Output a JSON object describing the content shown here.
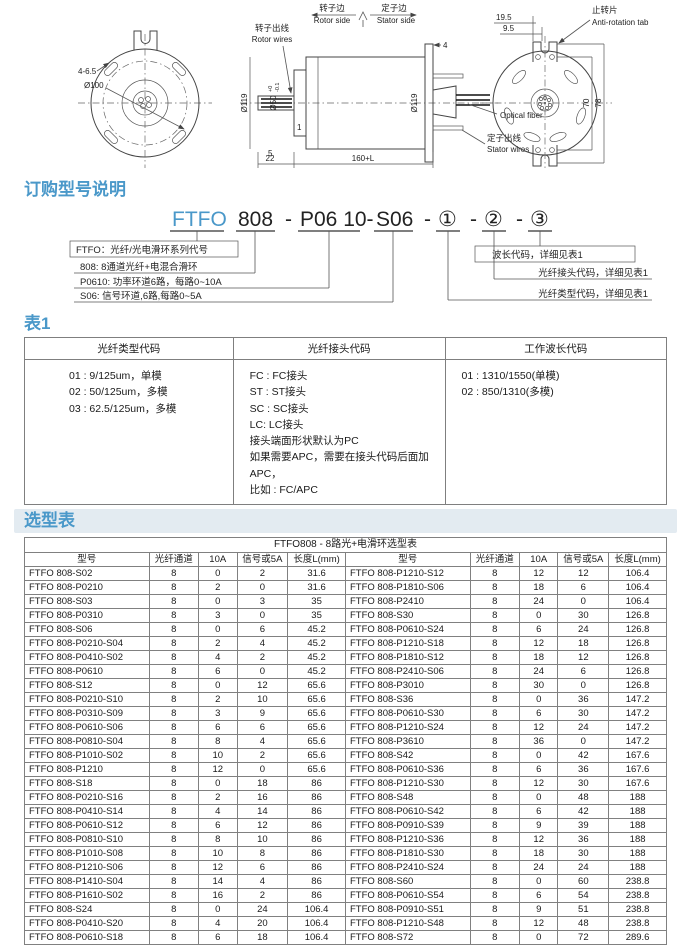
{
  "drawing": {
    "front": {
      "dim_holes": "4-6.5",
      "dim_bolt_circle": "Ø100"
    },
    "side": {
      "rotor_side_cn": "转子边",
      "rotor_side_en": "Rotor side",
      "stator_side_cn": "定子边",
      "stator_side_en": "Stator side",
      "rotor_wires_cn": "转子出线",
      "rotor_wires_en": "Rotor wires",
      "stator_wires_cn": "定子出线",
      "stator_wires_en": "Stator wires",
      "optical_fiber": "Optical fiber",
      "dim_od_left": "Ø119",
      "dim_shaft": "Ø50",
      "dim_shaft_tol_upper": "+0",
      "dim_shaft_tol_lower": "-0.1",
      "dim_od_right": "Ø119",
      "dim_1": "1",
      "dim_4": "4",
      "dim_5": "5",
      "dim_22": "22",
      "dim_length": "160+L"
    },
    "rear": {
      "anti_rotation_cn": "止转片",
      "anti_rotation_en": "Anti-rotation tab",
      "dim_19_5": "19.5",
      "dim_9_5": "9.5",
      "dim_70": "70",
      "dim_78": "78"
    }
  },
  "ordering": {
    "section_title": "订购型号说明",
    "model": {
      "series": "FTFO",
      "code_channels": "808",
      "dash1": "-",
      "code_power": "P06 10-",
      "code_signal": "S06",
      "dash2": "-",
      "c1": "①",
      "dash3": "-",
      "c2": "②",
      "dash4": "-",
      "c3": "③"
    },
    "callouts_left": [
      "FTFO：光纤/光电滑环系列代号",
      "808: 8通道光纤+电混合滑环",
      "P0610: 功率环道6路，每路0~10A",
      "S06: 信号环道,6路,每路0~5A"
    ],
    "callouts_right": [
      "波长代码，详细见表1",
      "光纤接头代码，详细见表1",
      "光纤类型代码，详细见表1"
    ]
  },
  "table1": {
    "section_title": "表1",
    "headers": [
      "光纤类型代码",
      "光纤接头代码",
      "工作波长代码"
    ],
    "fiber_type_codes": "01 : 9/125um，单模\n02 : 50/125um，多模\n03 : 62.5/125um，多模",
    "connector_codes": "FC : FC接头\nST : ST接头\nSC : SC接头\nLC:  LC接头\n接头端面形状默认为PC\n如果需要APC，需要在接头代码后面加APC，\n比如 : FC/APC",
    "wavelength_codes": "01 : 1310/1550(单模)\n02 : 850/1310(多模)"
  },
  "selection_table": {
    "section_title": "选型表",
    "title": "FTFO808 - 8路光+电滑环选型表",
    "headers": [
      "型号",
      "光纤通道",
      "10A",
      "信号或5A",
      "长度L(mm)",
      "型号",
      "光纤通道",
      "10A",
      "信号或5A",
      "长度L(mm)"
    ],
    "rows": [
      [
        "FTFO 808-S02",
        "8",
        "0",
        "2",
        "31.6",
        "FTFO 808-P1210-S12",
        "8",
        "12",
        "12",
        "106.4"
      ],
      [
        "FTFO 808-P0210",
        "8",
        "2",
        "0",
        "31.6",
        "FTFO 808-P1810-S06",
        "8",
        "18",
        "6",
        "106.4"
      ],
      [
        "FTFO 808-S03",
        "8",
        "0",
        "3",
        "35",
        "FTFO 808-P2410",
        "8",
        "24",
        "0",
        "106.4"
      ],
      [
        "FTFO 808-P0310",
        "8",
        "3",
        "0",
        "35",
        "FTFO 808-S30",
        "8",
        "0",
        "30",
        "126.8"
      ],
      [
        "FTFO 808-S06",
        "8",
        "0",
        "6",
        "45.2",
        "FTFO 808-P0610-S24",
        "8",
        "6",
        "24",
        "126.8"
      ],
      [
        "FTFO 808-P0210-S04",
        "8",
        "2",
        "4",
        "45.2",
        "FTFO 808-P1210-S18",
        "8",
        "12",
        "18",
        "126.8"
      ],
      [
        "FTFO 808-P0410-S02",
        "8",
        "4",
        "2",
        "45.2",
        "FTFO 808-P1810-S12",
        "8",
        "18",
        "12",
        "126.8"
      ],
      [
        "FTFO 808-P0610",
        "8",
        "6",
        "0",
        "45.2",
        "FTFO 808-P2410-S06",
        "8",
        "24",
        "6",
        "126.8"
      ],
      [
        "FTFO 808-S12",
        "8",
        "0",
        "12",
        "65.6",
        "FTFO 808-P3010",
        "8",
        "30",
        "0",
        "126.8"
      ],
      [
        "FTFO 808-P0210-S10",
        "8",
        "2",
        "10",
        "65.6",
        "FTFO 808-S36",
        "8",
        "0",
        "36",
        "147.2"
      ],
      [
        "FTFO 808-P0310-S09",
        "8",
        "3",
        "9",
        "65.6",
        "FTFO 808-P0610-S30",
        "8",
        "6",
        "30",
        "147.2"
      ],
      [
        "FTFO 808-P0610-S06",
        "8",
        "6",
        "6",
        "65.6",
        "FTFO 808-P1210-S24",
        "8",
        "12",
        "24",
        "147.2"
      ],
      [
        "FTFO 808-P0810-S04",
        "8",
        "8",
        "4",
        "65.6",
        "FTFO 808-P3610",
        "8",
        "36",
        "0",
        "147.2"
      ],
      [
        "FTFO 808-P1010-S02",
        "8",
        "10",
        "2",
        "65.6",
        "FTFO 808-S42",
        "8",
        "0",
        "42",
        "167.6"
      ],
      [
        "FTFO 808-P1210",
        "8",
        "12",
        "0",
        "65.6",
        "FTFO 808-P0610-S36",
        "8",
        "6",
        "36",
        "167.6"
      ],
      [
        "FTFO 808-S18",
        "8",
        "0",
        "18",
        "86",
        "FTFO 808-P1210-S30",
        "8",
        "12",
        "30",
        "167.6"
      ],
      [
        "FTFO 808-P0210-S16",
        "8",
        "2",
        "16",
        "86",
        "FTFO 808-S48",
        "8",
        "0",
        "48",
        "188"
      ],
      [
        "FTFO 808-P0410-S14",
        "8",
        "4",
        "14",
        "86",
        "FTFO 808-P0610-S42",
        "8",
        "6",
        "42",
        "188"
      ],
      [
        "FTFO 808-P0610-S12",
        "8",
        "6",
        "12",
        "86",
        "FTFO 808-P0910-S39",
        "8",
        "9",
        "39",
        "188"
      ],
      [
        "FTFO 808-P0810-S10",
        "8",
        "8",
        "10",
        "86",
        "FTFO 808-P1210-S36",
        "8",
        "12",
        "36",
        "188"
      ],
      [
        "FTFO 808-P1010-S08",
        "8",
        "10",
        "8",
        "86",
        "FTFO 808-P1810-S30",
        "8",
        "18",
        "30",
        "188"
      ],
      [
        "FTFO 808-P1210-S06",
        "8",
        "12",
        "6",
        "86",
        "FTFO 808-P2410-S24",
        "8",
        "24",
        "24",
        "188"
      ],
      [
        "FTFO 808-P1410-S04",
        "8",
        "14",
        "4",
        "86",
        "FTFO 808-S60",
        "8",
        "0",
        "60",
        "238.8"
      ],
      [
        "FTFO 808-P1610-S02",
        "8",
        "16",
        "2",
        "86",
        "FTFO 808-P0610-S54",
        "8",
        "6",
        "54",
        "238.8"
      ],
      [
        "FTFO 808-S24",
        "8",
        "0",
        "24",
        "106.4",
        "FTFO 808-P0910-S51",
        "8",
        "9",
        "51",
        "238.8"
      ],
      [
        "FTFO 808-P0410-S20",
        "8",
        "4",
        "20",
        "106.4",
        "FTFO 808-P1210-S48",
        "8",
        "12",
        "48",
        "238.8"
      ],
      [
        "FTFO 808-P0610-S18",
        "8",
        "6",
        "18",
        "106.4",
        "FTFO 808-S72",
        "8",
        "0",
        "72",
        "289.6"
      ]
    ]
  }
}
